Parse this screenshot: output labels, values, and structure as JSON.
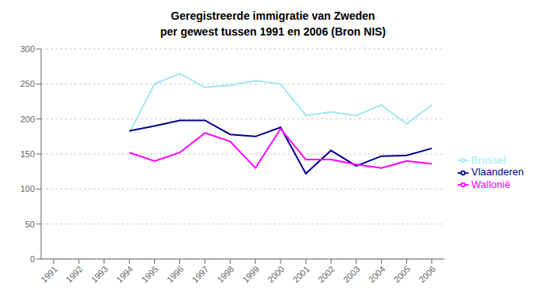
{
  "chart_data": {
    "type": "line",
    "title": "Geregistreerde immigratie van Zweden\nper gewest tussen 1991 en 2006 (Bron NIS)",
    "x": [
      1991,
      1992,
      1993,
      1994,
      1995,
      1996,
      1997,
      1998,
      1999,
      2000,
      2001,
      2002,
      2003,
      2004,
      2005,
      2006
    ],
    "series": [
      {
        "name": "Brussel",
        "color": "#A0E8F0",
        "values": [
          null,
          null,
          null,
          180,
          250,
          265,
          245,
          248,
          255,
          250,
          205,
          210,
          205,
          220,
          193,
          220
        ]
      },
      {
        "name": "Vlaanderen",
        "color": "#00008B",
        "values": [
          null,
          null,
          null,
          183,
          190,
          198,
          198,
          178,
          175,
          188,
          122,
          155,
          133,
          147,
          148,
          158
        ]
      },
      {
        "name": "Wallonië",
        "color": "#FF00FF",
        "values": [
          null,
          null,
          null,
          152,
          140,
          152,
          180,
          168,
          130,
          186,
          142,
          142,
          135,
          130,
          140,
          136
        ]
      }
    ],
    "xlim": [
      1990.5,
      2006.5
    ],
    "xticks": [
      1991,
      1992,
      1993,
      1994,
      1995,
      1996,
      1997,
      1998,
      1999,
      2000,
      2001,
      2002,
      2003,
      2004,
      2005,
      2006
    ],
    "ylim": [
      0,
      300
    ],
    "yticks": [
      0,
      50,
      100,
      150,
      200,
      250,
      300
    ],
    "grid": true,
    "legend": "right"
  }
}
